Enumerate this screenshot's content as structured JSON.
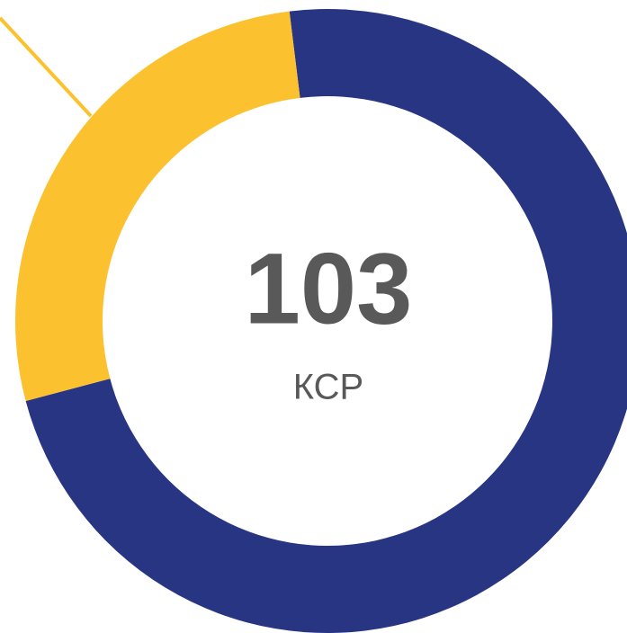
{
  "chart_data": {
    "type": "donut",
    "center_text": "103",
    "center_subtext": "КСР",
    "values": [
      75,
      28
    ],
    "colors": [
      "#283583",
      "#fcc12e"
    ]
  }
}
